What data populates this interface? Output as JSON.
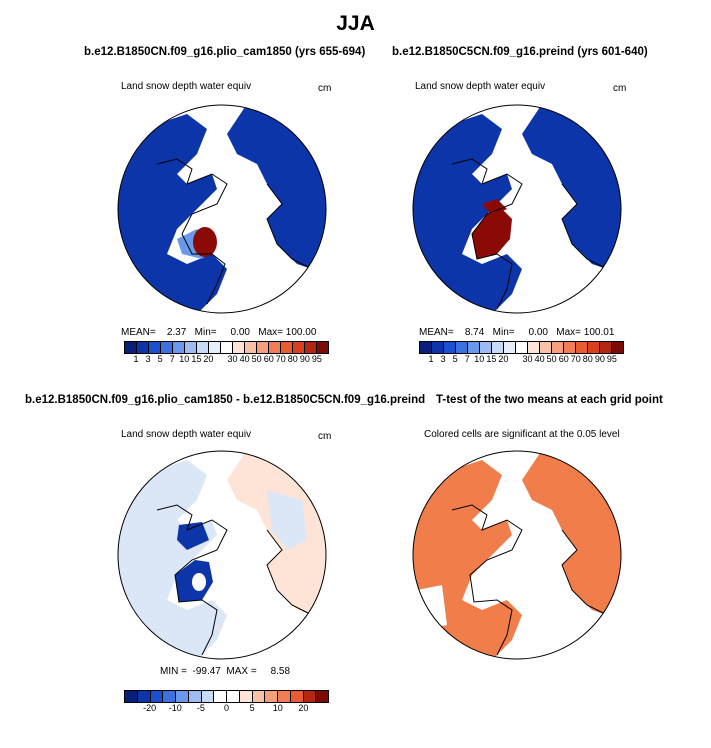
{
  "season": "JJA",
  "panel1": {
    "title": "b.e12.B1850CN.f09_g16.plio_cam1850 (yrs 655-694)",
    "subtitle": "Land snow depth water equiv",
    "units": "cm",
    "stats": "MEAN=    2.37   Min=     0.00   Max= 100.00"
  },
  "panel2": {
    "title": "b.e12.B1850C5CN.f09_g16.preind (yrs 601-640)",
    "subtitle": "Land snow depth water equiv",
    "units": "cm",
    "stats": "MEAN=    8.74   Min=     0.00   Max= 100.01"
  },
  "panel3": {
    "title": "b.e12.B1850CN.f09_g16.plio_cam1850 - b.e12.B1850C5CN.f09_g16.preind",
    "subtitle": "Land snow depth water equiv",
    "units": "cm",
    "stats": "MIN =  -99.47  MAX =     8.58"
  },
  "panel4": {
    "title": "T-test of the two means at each grid point",
    "subtitle": "Colored cells are significant at the 0.05 level"
  },
  "colorbar_top": {
    "colors": [
      "#08207a",
      "#0b35a8",
      "#1a4fd0",
      "#3b72e0",
      "#6a98ea",
      "#9dbcf2",
      "#c7daf7",
      "#e6eefb",
      "#ffffff",
      "#fde4d6",
      "#f9c2a6",
      "#f59f7c",
      "#f07d56",
      "#e95c33",
      "#d8401f",
      "#b32712",
      "#7c0a05"
    ],
    "labels": [
      "1",
      "3",
      "5",
      "7",
      "10",
      "15",
      "20",
      "30",
      "40",
      "50",
      "60",
      "70",
      "80",
      "90",
      "95"
    ]
  },
  "colorbar_diff": {
    "colors": [
      "#08207a",
      "#0b35a8",
      "#1a4fd0",
      "#3b72e0",
      "#6a98ea",
      "#9dbcf2",
      "#c7daf7",
      "#ffffff",
      "#ffffff",
      "#fde4d6",
      "#f9c2a6",
      "#f59f7c",
      "#f07d56",
      "#e95c33",
      "#b32712",
      "#7c0a05"
    ],
    "labels": [
      "-20",
      "-10",
      "-5",
      "0",
      "5",
      "10",
      "20"
    ]
  },
  "colors": {
    "dark_blue": "#0b35a8",
    "dark_red": "#8b0a05",
    "light_blue": "#dbe7f7",
    "orange": "#f07d4a"
  }
}
